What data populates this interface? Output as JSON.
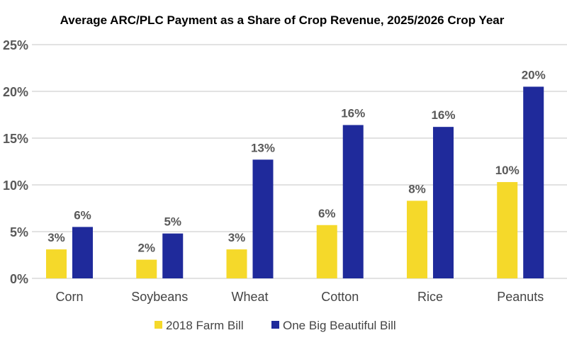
{
  "chart_data": {
    "type": "bar",
    "title": "Average ARC/PLC Payment as a Share of Crop Revenue, 2025/2026 Crop Year",
    "xlabel": "",
    "ylabel": "",
    "categories": [
      "Corn",
      "Soybeans",
      "Wheat",
      "Cotton",
      "Rice",
      "Peanuts"
    ],
    "ylim": [
      0,
      25
    ],
    "yticks": [
      0,
      5,
      10,
      15,
      20,
      25
    ],
    "ytick_labels": [
      "0%",
      "5%",
      "10%",
      "15%",
      "20%",
      "25%"
    ],
    "grid": true,
    "legend_position": "bottom",
    "series": [
      {
        "name": "2018 Farm Bill",
        "color": "#F5D92A",
        "values": [
          3.1,
          2.0,
          3.1,
          5.7,
          8.3,
          10.3
        ],
        "labels": [
          "3%",
          "2%",
          "3%",
          "6%",
          "8%",
          "10%"
        ]
      },
      {
        "name": "One Big Beautiful Bill",
        "color": "#1F2A9B",
        "values": [
          5.5,
          4.8,
          12.7,
          16.4,
          16.2,
          20.5
        ],
        "labels": [
          "6%",
          "5%",
          "13%",
          "16%",
          "16%",
          "20%"
        ]
      }
    ]
  }
}
